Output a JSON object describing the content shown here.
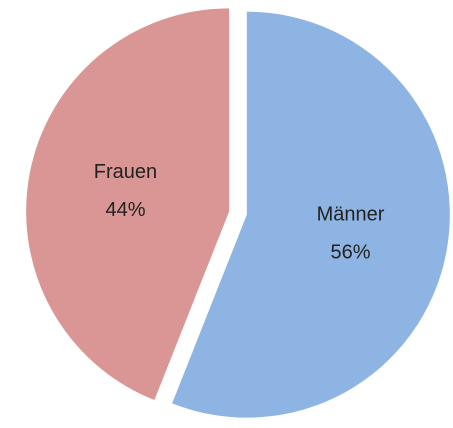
{
  "chart_data": {
    "type": "pie",
    "categories": [
      "Männer",
      "Frauen"
    ],
    "values": [
      56,
      44
    ],
    "value_labels": [
      "56%",
      "44%"
    ],
    "colors": [
      "#8eb4e3",
      "#d99694"
    ]
  }
}
